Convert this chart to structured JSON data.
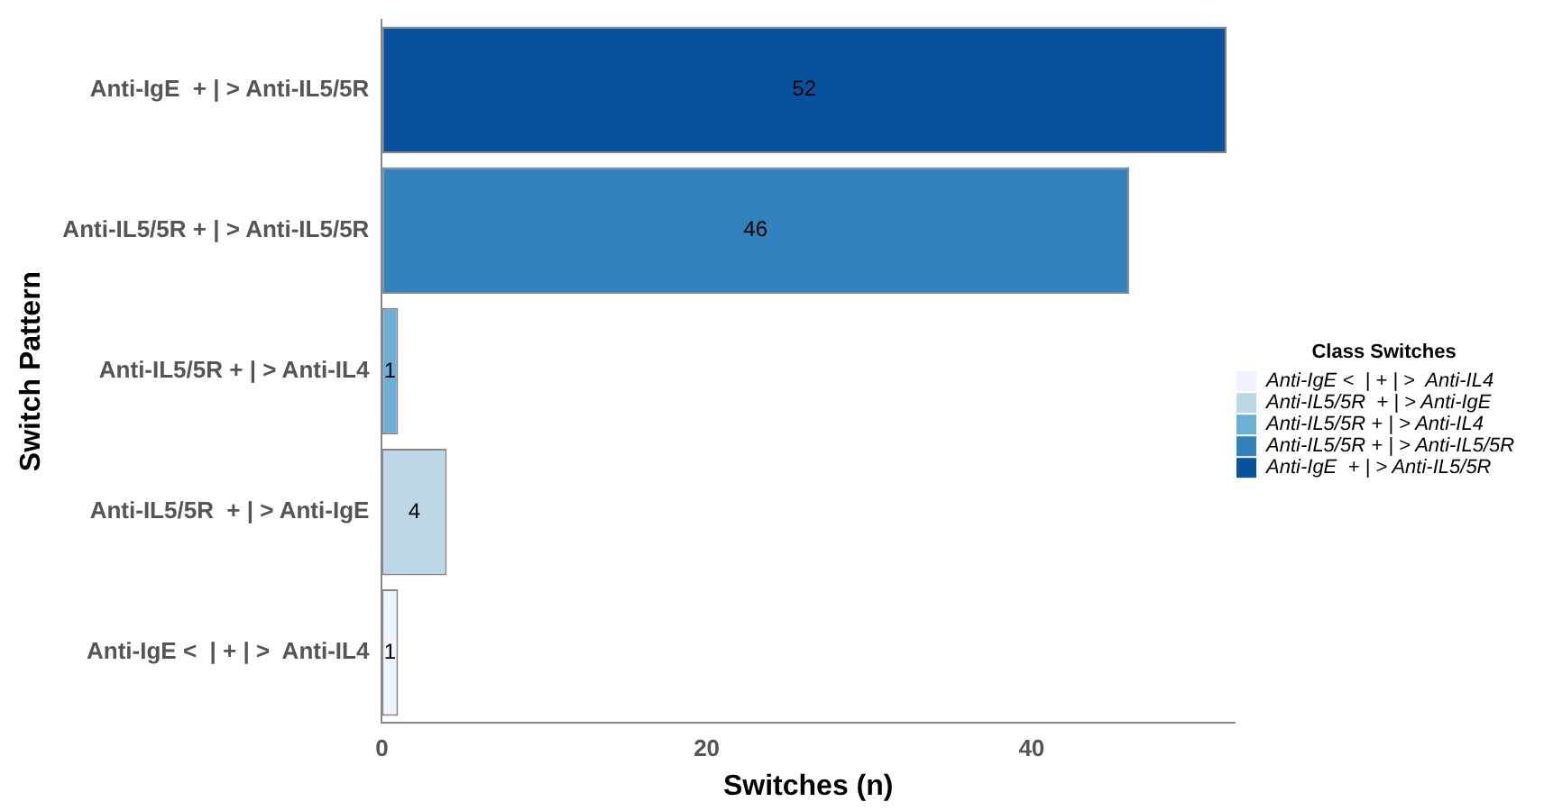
{
  "chart_data": {
    "type": "bar",
    "orientation": "horizontal",
    "stacked": true,
    "xlabel": "Switches (n)",
    "ylabel": "Switch Pattern",
    "legend_title": "Class Switches",
    "legend": "right",
    "categories": [
      "Anti-IgE  + | > Anti-IL5/5R",
      "Anti-IL5/5R + | > Anti-IL5/5R",
      "Anti-IL5/5R + | > Anti-IL4",
      "Anti-IL5/5R  + | > Anti-IgE",
      "Anti-IgE <  | + | >  Anti-IL4"
    ],
    "series": [
      {
        "name": "Anti-IgE <  | + | >  Anti-IL4",
        "color": "#eff3ff",
        "values": [
          null,
          null,
          null,
          null,
          1
        ]
      },
      {
        "name": "Anti-IL5/5R  + | > Anti-IgE",
        "color": "#bdd7e7",
        "values": [
          null,
          null,
          null,
          4,
          null
        ]
      },
      {
        "name": "Anti-IL5/5R + | > Anti-IL4",
        "color": "#6baed6",
        "values": [
          null,
          null,
          1,
          null,
          null
        ]
      },
      {
        "name": "Anti-IL5/5R + | > Anti-IL5/5R",
        "color": "#3182bd",
        "values": [
          null,
          46,
          null,
          null,
          null
        ]
      },
      {
        "name": "Anti-IgE  + | > Anti-IL5/5R",
        "color": "#08519c",
        "values": [
          52,
          null,
          null,
          null,
          null
        ]
      }
    ],
    "xlim": [
      0,
      52.5
    ],
    "xticks": [
      0,
      20,
      40
    ],
    "grid": false,
    "data_labels": true
  }
}
